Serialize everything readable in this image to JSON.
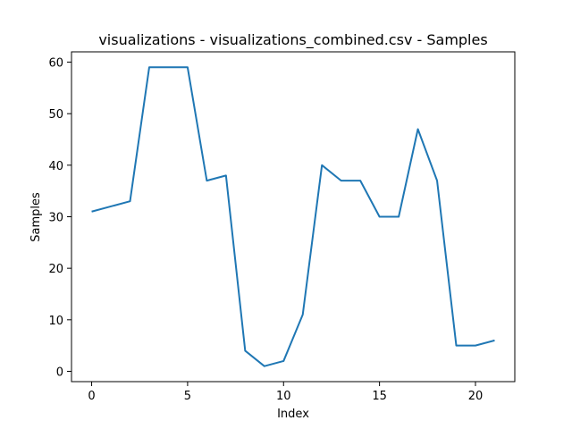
{
  "chart_data": {
    "type": "line",
    "title": "visualizations - visualizations_combined.csv - Samples",
    "xlabel": "Index",
    "ylabel": "Samples",
    "xlim": [
      -1.05,
      22.05
    ],
    "ylim": [
      -2.0,
      62.0
    ],
    "xticks": [
      0,
      5,
      10,
      15,
      20
    ],
    "yticks": [
      0,
      10,
      20,
      30,
      40,
      50,
      60
    ],
    "grid": false,
    "series": [
      {
        "color": "#1f77b4",
        "x": [
          0,
          1,
          2,
          3,
          4,
          5,
          6,
          7,
          8,
          9,
          10,
          11,
          12,
          13,
          14,
          15,
          16,
          17,
          18,
          19,
          20,
          21
        ],
        "y": [
          31,
          32,
          33,
          59,
          59,
          59,
          37,
          38,
          4,
          1,
          2,
          11,
          40,
          37,
          37,
          30,
          30,
          47,
          37,
          5,
          5,
          6
        ]
      }
    ]
  }
}
